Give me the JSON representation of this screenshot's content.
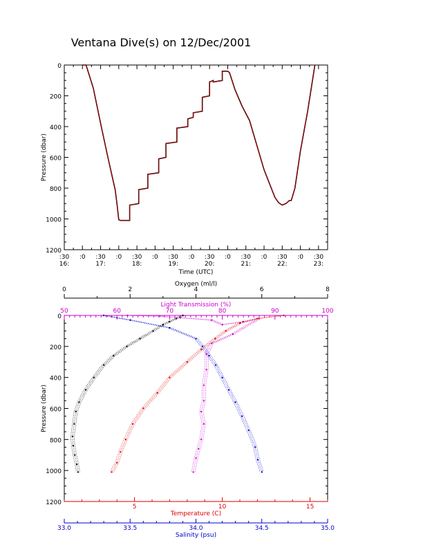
{
  "title": "Ventana Dive(s) on 12/Dec/2001",
  "colors": {
    "axis": "#000000",
    "oxygen": "#000000",
    "light": "#cc00cc",
    "temperature": "#dd0000",
    "salinity": "#0000cc",
    "trace": "#cc0000"
  },
  "chart_data": [
    {
      "type": "line",
      "title": "Ventana Dive(s) on 12/Dec/2001",
      "xlabel": "Time (UTC)",
      "ylabel": "Pressure (dbar)",
      "xlim": [
        16.5,
        23.75
      ],
      "ylim": [
        1200,
        0
      ],
      "yticks": [
        "0",
        "200",
        "400",
        "600",
        "800",
        "1000",
        "1200"
      ],
      "xticks_minute": [
        ":30",
        ":0",
        ":30",
        ":0",
        ":30",
        ":0",
        ":30",
        ":0",
        ":30",
        ":0",
        ":30",
        ":0",
        ":30",
        ":0",
        ":30"
      ],
      "xticks_hour": [
        "16:",
        "17:",
        "18:",
        "19:",
        "20:",
        "21:",
        "22:",
        "23:"
      ],
      "series": [
        {
          "x": [
            17.0,
            17.1,
            17.3,
            17.5,
            17.7,
            17.9,
            17.95,
            18.0,
            18.05,
            18.2,
            18.3,
            18.3,
            18.55,
            18.55,
            18.8,
            18.8,
            19.1,
            19.1,
            19.3,
            19.3,
            19.6,
            19.6,
            19.9,
            19.9,
            20.05,
            20.05,
            20.3,
            20.3,
            20.5,
            20.5,
            20.6,
            20.6,
            20.85,
            20.85,
            21.0,
            21.05,
            21.2,
            21.4,
            21.6,
            21.8,
            22.0,
            22.2,
            22.3,
            22.4,
            22.5,
            22.6,
            22.7,
            22.75,
            22.85,
            23.0,
            23.2,
            23.4
          ],
          "y": [
            0,
            0,
            150,
            380,
            600,
            810,
            900,
            1005,
            1010,
            1010,
            1010,
            910,
            900,
            810,
            800,
            710,
            700,
            610,
            600,
            510,
            500,
            410,
            400,
            350,
            340,
            310,
            300,
            210,
            200,
            110,
            100,
            110,
            100,
            40,
            40,
            50,
            160,
            270,
            360,
            520,
            680,
            800,
            860,
            895,
            910,
            900,
            880,
            880,
            800,
            560,
            300,
            0
          ]
        }
      ]
    },
    {
      "type": "scatter",
      "ylabel": "Pressure (dbar)",
      "ylim": [
        1200,
        0
      ],
      "yticks": [
        "0",
        "200",
        "400",
        "600",
        "800",
        "1000",
        "1200"
      ],
      "axes": {
        "oxygen": {
          "label": "Oxygen (ml/l)",
          "range": [
            0,
            8
          ],
          "ticks": [
            "0",
            "2",
            "4",
            "6",
            "8"
          ]
        },
        "light": {
          "label": "Light Transmission (%)",
          "range": [
            50,
            100
          ],
          "ticks": [
            "50",
            "60",
            "70",
            "80",
            "90",
            "100"
          ]
        },
        "temperature": {
          "label": "Temperature (C)",
          "range": [
            1,
            16
          ],
          "ticks": [
            "5",
            "10",
            "15"
          ]
        },
        "salinity": {
          "label": "Salinity (psu)",
          "range": [
            33.0,
            35.0
          ],
          "ticks": [
            "33.0",
            "33.5",
            "34.0",
            "34.5",
            "35.0"
          ]
        }
      },
      "series": [
        {
          "name": "Oxygen (ml/l)",
          "axis": "oxygen",
          "x": [
            3.6,
            3.4,
            3.2,
            3.0,
            2.7,
            2.3,
            1.9,
            1.5,
            1.2,
            0.9,
            0.65,
            0.45,
            0.35,
            0.3,
            0.25,
            0.27,
            0.32,
            0.38,
            0.42
          ],
          "y": [
            0,
            20,
            40,
            60,
            100,
            150,
            200,
            260,
            320,
            400,
            480,
            560,
            620,
            700,
            780,
            840,
            900,
            960,
            1010
          ]
        },
        {
          "name": "Light Transmission (%)",
          "axis": "light",
          "x": [
            62,
            68,
            72,
            78,
            80,
            84,
            87,
            82,
            78,
            77,
            77,
            76.5,
            76.5,
            76,
            76.5,
            76,
            75.5,
            75,
            74.5
          ],
          "y": [
            0,
            5,
            15,
            30,
            60,
            40,
            20,
            120,
            180,
            250,
            350,
            450,
            550,
            620,
            700,
            800,
            860,
            920,
            1010
          ]
        },
        {
          "name": "Temperature (C)",
          "axis": "temperature",
          "x": [
            13.5,
            12.0,
            11.0,
            10.2,
            9.6,
            8.8,
            8.0,
            7.0,
            6.3,
            5.5,
            4.9,
            4.5,
            4.2,
            4.0,
            3.7
          ],
          "y": [
            0,
            20,
            50,
            100,
            150,
            220,
            300,
            400,
            500,
            600,
            700,
            800,
            880,
            950,
            1010
          ]
        },
        {
          "name": "Salinity (psu)",
          "axis": "salinity",
          "x": [
            33.3,
            33.5,
            33.8,
            34.0,
            34.05,
            34.1,
            34.15,
            34.2,
            34.25,
            34.3,
            34.35,
            34.4,
            34.45,
            34.47,
            34.5
          ],
          "y": [
            0,
            30,
            80,
            150,
            200,
            260,
            320,
            400,
            480,
            560,
            650,
            740,
            850,
            930,
            1010
          ]
        }
      ]
    }
  ]
}
